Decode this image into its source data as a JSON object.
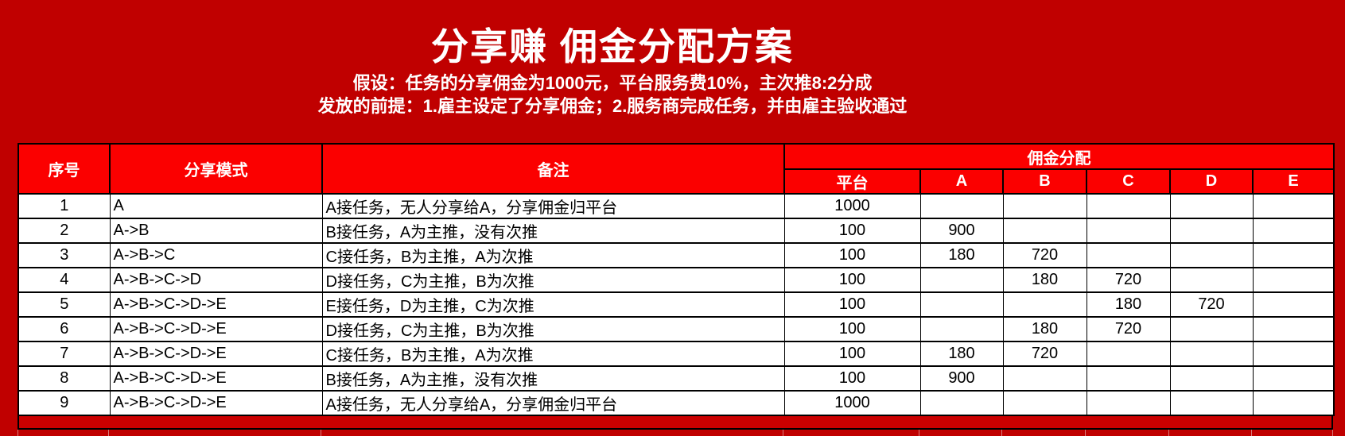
{
  "page": {
    "title": "分享赚 佣金分配方案",
    "assumption": "假设：任务的分享佣金为1000元，平台服务费10%，主次推8:2分成",
    "premise": "发放的前提：1.雇主设定了分享佣金；2.服务商完成任务，并由雇主验收通过"
  },
  "colors": {
    "page_background": "#C00000",
    "header_fill": "#FB0000",
    "row_fill": "#FFFFFF",
    "border": "#000000",
    "title_text": "#FFFFFF",
    "body_text": "#000000"
  },
  "table": {
    "header": {
      "index": "序号",
      "mode": "分享模式",
      "remark": "备注",
      "group": "佣金分配",
      "sub": [
        "平台",
        "A",
        "B",
        "C",
        "D",
        "E"
      ]
    },
    "rows": [
      {
        "index": "1",
        "mode": "A",
        "remark": "A接任务，无人分享给A，分享佣金归平台",
        "values": [
          "1000",
          "",
          "",
          "",
          "",
          ""
        ]
      },
      {
        "index": "2",
        "mode": "A->B",
        "remark": "B接任务，A为主推，没有次推",
        "values": [
          "100",
          "900",
          "",
          "",
          "",
          ""
        ]
      },
      {
        "index": "3",
        "mode": "A->B->C",
        "remark": "C接任务，B为主推，A为次推",
        "values": [
          "100",
          "180",
          "720",
          "",
          "",
          ""
        ]
      },
      {
        "index": "4",
        "mode": "A->B->C->D",
        "remark": "D接任务，C为主推，B为次推",
        "values": [
          "100",
          "",
          "180",
          "720",
          "",
          ""
        ]
      },
      {
        "index": "5",
        "mode": "A->B->C->D->E",
        "remark": "E接任务，D为主推，C为次推",
        "values": [
          "100",
          "",
          "",
          "180",
          "720",
          ""
        ]
      },
      {
        "index": "6",
        "mode": "A->B->C->D->E",
        "remark": "D接任务，C为主推，B为次推",
        "values": [
          "100",
          "",
          "180",
          "720",
          "",
          ""
        ]
      },
      {
        "index": "7",
        "mode": "A->B->C->D->E",
        "remark": "C接任务，B为主推，A为次推",
        "values": [
          "100",
          "180",
          "720",
          "",
          "",
          ""
        ]
      },
      {
        "index": "8",
        "mode": "A->B->C->D->E",
        "remark": "B接任务，A为主推，没有次推",
        "values": [
          "100",
          "900",
          "",
          "",
          "",
          ""
        ]
      },
      {
        "index": "9",
        "mode": "A->B->C->D->E",
        "remark": "A接任务，无人分享给A，分享佣金归平台",
        "values": [
          "1000",
          "",
          "",
          "",
          "",
          ""
        ]
      }
    ]
  }
}
